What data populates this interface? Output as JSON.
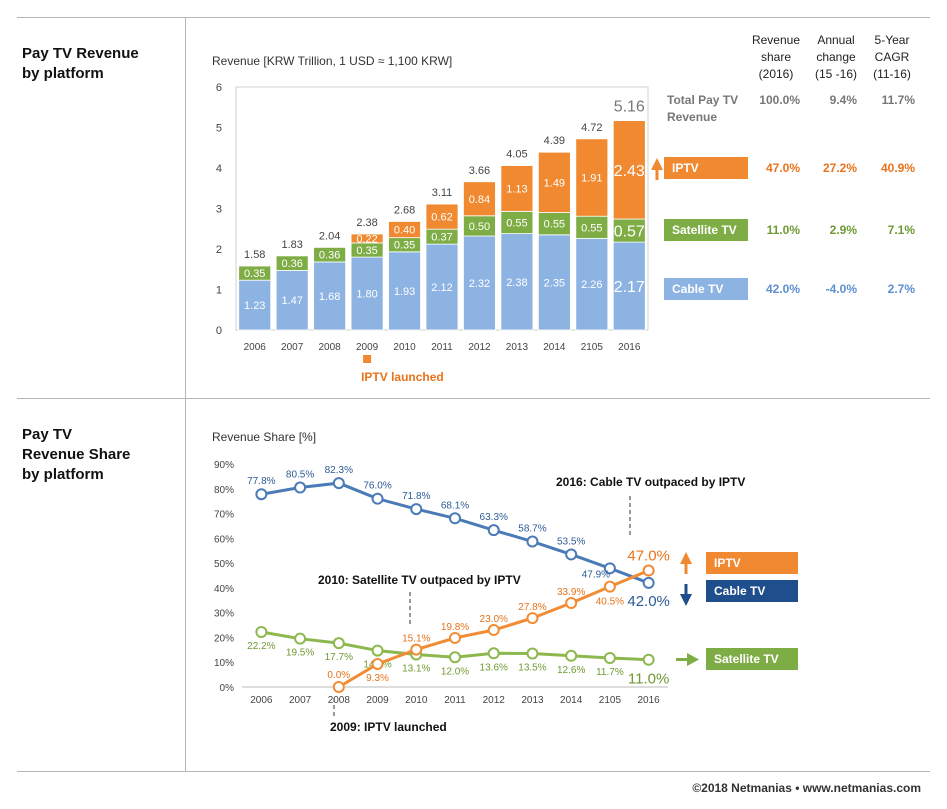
{
  "sections": {
    "top_label": "Pay TV Revenue\nby platform",
    "bottom_label": "Pay TV\nRevenue Share\nby platform"
  },
  "colors": {
    "cable": "#8db3e2",
    "satellite": "#7fad45",
    "iptv": "#f0892f",
    "cable_line": "#4a7bb7",
    "satellite_line": "#8cb84e",
    "iptv_line": "#f28c34",
    "cable_tag": "#1f4e8c",
    "cable_text_top": "#5e8fd0",
    "iptv_text": "#e8731b",
    "sat_text": "#6f9a33"
  },
  "chart_data": [
    {
      "type": "bar",
      "stacked": true,
      "ylabel": "Revenue [KRW Trillion, 1 USD ≈ 1,100 KRW]",
      "ylim": [
        0,
        6
      ],
      "yticks": [
        "0",
        "1",
        "2",
        "3",
        "4",
        "5",
        "6"
      ],
      "categories": [
        "2006",
        "2007",
        "2008",
        "2009",
        "2010",
        "2011",
        "2012",
        "2013",
        "2014",
        "2105",
        "2016"
      ],
      "series": [
        {
          "name": "Cable TV",
          "values": [
            1.23,
            1.47,
            1.68,
            1.8,
            1.93,
            2.12,
            2.32,
            2.38,
            2.35,
            2.26,
            2.17
          ],
          "labels": [
            "1.23",
            "1.47",
            "1.68",
            "1.80",
            "1.93",
            "2.12",
            "2.32",
            "2.38",
            "2.35",
            "2.26",
            "2.17"
          ]
        },
        {
          "name": "Satellite TV",
          "values": [
            0.35,
            0.36,
            0.36,
            0.35,
            0.35,
            0.37,
            0.5,
            0.55,
            0.55,
            0.55,
            0.57
          ],
          "labels": [
            "0.35",
            "0.36",
            "0.36",
            "0.35",
            "0.35",
            "0.37",
            "0.50",
            "0.55",
            "0.55",
            "0.55",
            "0.57"
          ]
        },
        {
          "name": "IPTV",
          "values": [
            0,
            0,
            0,
            0.22,
            0.4,
            0.62,
            0.84,
            1.13,
            1.49,
            1.91,
            2.43
          ],
          "labels": [
            "",
            "",
            "",
            "0.22",
            "0.40",
            "0.62",
            "0.84",
            "1.13",
            "1.49",
            "1.91",
            "2.43"
          ]
        }
      ],
      "totals": [
        "1.58",
        "1.83",
        "2.04",
        "2.38",
        "2.68",
        "3.11",
        "3.66",
        "4.05",
        "4.39",
        "4.72",
        "5.16"
      ],
      "annotation": "IPTV launched",
      "legend": "right"
    },
    {
      "type": "line",
      "ylabel": "Revenue Share [%]",
      "ylim": [
        0,
        90
      ],
      "yticks": [
        "0%",
        "10%",
        "20%",
        "30%",
        "40%",
        "50%",
        "60%",
        "70%",
        "80%",
        "90%"
      ],
      "categories": [
        "2006",
        "2007",
        "2008",
        "2009",
        "2010",
        "2011",
        "2012",
        "2013",
        "2014",
        "2105",
        "2016"
      ],
      "series": [
        {
          "name": "Cable TV",
          "values": [
            77.8,
            80.5,
            82.3,
            76.0,
            71.8,
            68.1,
            63.3,
            58.7,
            53.5,
            47.9,
            42.0
          ],
          "labels": [
            "77.8%",
            "80.5%",
            "82.3%",
            "76.0%",
            "71.8%",
            "68.1%",
            "63.3%",
            "58.7%",
            "53.5%",
            "47.9%",
            "42.0%"
          ]
        },
        {
          "name": "Satellite TV",
          "values": [
            22.2,
            19.5,
            17.7,
            14.7,
            13.1,
            12.0,
            13.6,
            13.5,
            12.6,
            11.7,
            11.0
          ],
          "labels": [
            "22.2%",
            "19.5%",
            "17.7%",
            "14.7%",
            "13.1%",
            "12.0%",
            "13.6%",
            "13.5%",
            "12.6%",
            "11.7%",
            "11.0%"
          ]
        },
        {
          "name": "IPTV",
          "values": [
            null,
            null,
            0.0,
            9.3,
            15.1,
            19.8,
            23.0,
            27.8,
            33.9,
            40.5,
            47.0
          ],
          "labels": [
            "",
            "",
            "0.0%",
            "9.3%",
            "15.1%",
            "19.8%",
            "23.0%",
            "27.8%",
            "33.9%",
            "40.5%",
            "47.0%"
          ]
        }
      ],
      "annotations": [
        "2016: Cable TV outpaced by IPTV",
        "2010: Satellite TV outpaced by IPTV",
        "2009: IPTV launched"
      ],
      "legend": "right"
    }
  ],
  "table": {
    "headers": [
      "Revenue\nshare\n(2016)",
      "Annual\nchange\n(15 -16)",
      "5-Year\nCAGR\n(11-16)"
    ],
    "rows": [
      {
        "label": "Total Pay TV\nRevenue",
        "share": "100.0%",
        "change": "9.4%",
        "cagr": "11.7%"
      },
      {
        "label": "IPTV",
        "share": "47.0%",
        "change": "27.2%",
        "cagr": "40.9%"
      },
      {
        "label": "Satellite TV",
        "share": "11.0%",
        "change": "2.9%",
        "cagr": "7.1%"
      },
      {
        "label": "Cable TV",
        "share": "42.0%",
        "change": "-4.0%",
        "cagr": "2.7%"
      }
    ]
  },
  "line_legend": [
    "IPTV",
    "Cable TV",
    "Satellite TV"
  ],
  "footer": "©2018 Netmanias • www.netmanias.com"
}
